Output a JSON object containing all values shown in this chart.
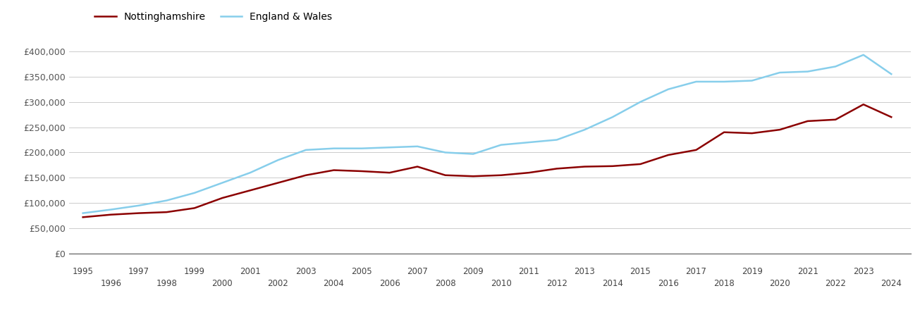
{
  "nottinghamshire": {
    "years": [
      1995,
      1996,
      1997,
      1998,
      1999,
      2000,
      2001,
      2002,
      2003,
      2004,
      2005,
      2006,
      2007,
      2008,
      2009,
      2010,
      2011,
      2012,
      2013,
      2014,
      2015,
      2016,
      2017,
      2018,
      2019,
      2020,
      2021,
      2022,
      2023,
      2024
    ],
    "values": [
      72000,
      77000,
      80000,
      82000,
      90000,
      110000,
      125000,
      140000,
      155000,
      165000,
      163000,
      160000,
      172000,
      155000,
      153000,
      155000,
      160000,
      168000,
      172000,
      173000,
      177000,
      195000,
      205000,
      240000,
      238000,
      245000,
      262000,
      265000,
      295000,
      270000
    ]
  },
  "england_wales": {
    "years": [
      1995,
      1996,
      1997,
      1998,
      1999,
      2000,
      2001,
      2002,
      2003,
      2004,
      2005,
      2006,
      2007,
      2008,
      2009,
      2010,
      2011,
      2012,
      2013,
      2014,
      2015,
      2016,
      2017,
      2018,
      2019,
      2020,
      2021,
      2022,
      2023,
      2024
    ],
    "values": [
      80000,
      87000,
      95000,
      105000,
      120000,
      140000,
      160000,
      185000,
      205000,
      208000,
      208000,
      210000,
      212000,
      200000,
      197000,
      215000,
      220000,
      225000,
      245000,
      270000,
      300000,
      325000,
      340000,
      340000,
      342000,
      358000,
      360000,
      370000,
      393000,
      355000
    ]
  },
  "nottinghamshire_color": "#8B0000",
  "england_wales_color": "#87CEEB",
  "nottinghamshire_label": "Nottinghamshire",
  "england_wales_label": "England & Wales",
  "ylim": [
    0,
    420000
  ],
  "yticks": [
    0,
    50000,
    100000,
    150000,
    200000,
    250000,
    300000,
    350000,
    400000
  ],
  "ytick_labels": [
    "£0",
    "£50,000",
    "£100,000",
    "£150,000",
    "£200,000",
    "£250,000",
    "£300,000",
    "£350,000",
    "£400,000"
  ],
  "background_color": "#ffffff",
  "grid_color": "#cccccc",
  "line_width": 1.8,
  "odd_years": [
    1995,
    1997,
    1999,
    2001,
    2003,
    2005,
    2007,
    2009,
    2011,
    2013,
    2015,
    2017,
    2019,
    2021,
    2023
  ],
  "even_years": [
    1996,
    1998,
    2000,
    2002,
    2004,
    2006,
    2008,
    2010,
    2012,
    2014,
    2016,
    2018,
    2020,
    2022,
    2024
  ]
}
